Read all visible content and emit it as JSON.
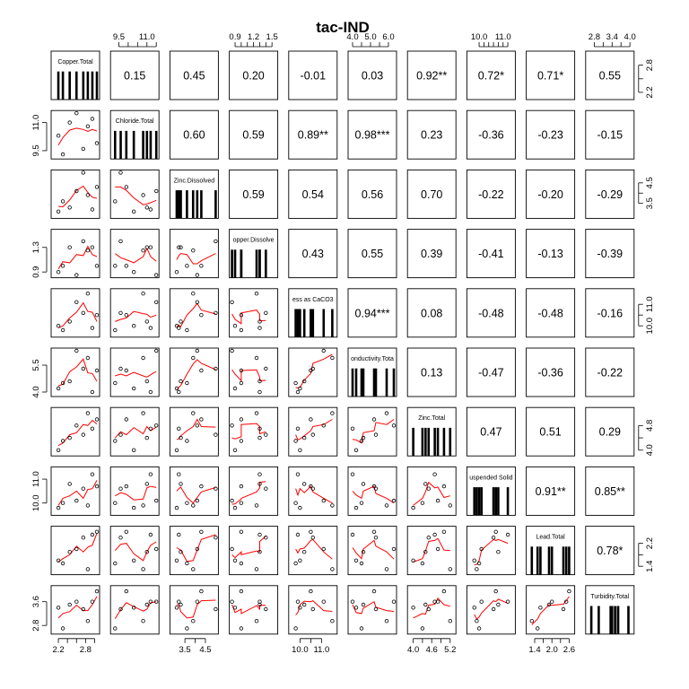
{
  "chart_data": {
    "type": "scatter",
    "title": "tac-IND",
    "variables": [
      "Copper.Total",
      "Chloride.Total",
      "Zinc.Dissolved",
      "opper.Dissolve",
      "ess as CaCO3",
      "onductivity.Tota",
      "Zinc.Total",
      "uspended Solid",
      "Lead.Total",
      "Turbidity.Total"
    ],
    "ranges": [
      [
        2.1,
        3.05
      ],
      [
        9.2,
        11.5
      ],
      [
        2.9,
        5.0
      ],
      [
        0.85,
        1.55
      ],
      [
        9.6,
        11.6
      ],
      [
        3.9,
        6.3
      ],
      [
        3.9,
        5.3
      ],
      [
        9.6,
        11.4
      ],
      [
        1.2,
        2.7
      ],
      [
        2.6,
        4.05
      ]
    ],
    "observations": [
      [
        2.2,
        10.3,
        3.1,
        0.9,
        10.0,
        4.2,
        4.0,
        9.8,
        1.6,
        3.4
      ],
      [
        2.3,
        9.3,
        3.6,
        1.0,
        9.8,
        4.5,
        4.3,
        10.0,
        1.5,
        2.7
      ],
      [
        2.45,
        11.0,
        3.3,
        1.3,
        10.2,
        4.6,
        4.4,
        10.8,
        1.9,
        3.5
      ],
      [
        2.6,
        11.5,
        4.1,
        0.85,
        11.1,
        6.3,
        4.8,
        10.1,
        2.0,
        3.6
      ],
      [
        2.75,
        9.6,
        5.0,
        1.4,
        10.6,
        5.3,
        4.5,
        10.6,
        2.4,
        3.35
      ],
      [
        2.85,
        10.8,
        3.9,
        1.25,
        11.5,
        5.9,
        5.2,
        9.9,
        1.3,
        2.95
      ],
      [
        2.95,
        11.2,
        3.2,
        1.3,
        9.9,
        4.0,
        4.7,
        11.2,
        2.5,
        3.6
      ],
      [
        3.05,
        9.9,
        4.3,
        1.0,
        10.5,
        5.2,
        5.0,
        10.7,
        2.6,
        3.95
      ]
    ],
    "correlations": [
      [
        "0.15",
        "0.45",
        "0.20",
        "-0.01",
        "0.03",
        "0.92**",
        "0.72*",
        "0.71*",
        "0.55"
      ],
      [
        "0.60",
        "0.59",
        "0.89**",
        "0.98***",
        "0.23",
        "-0.36",
        "-0.23",
        "-0.15"
      ],
      [
        "0.59",
        "0.54",
        "0.56",
        "0.70",
        "-0.22",
        "-0.20",
        "-0.29"
      ],
      [
        "0.43",
        "0.55",
        "0.39",
        "-0.41",
        "-0.13",
        "-0.39"
      ],
      [
        "0.94***",
        "0.08",
        "-0.48",
        "-0.48",
        "-0.16"
      ],
      [
        "0.13",
        "-0.47",
        "-0.36",
        "-0.22"
      ],
      [
        "0.47",
        "0.51",
        "0.29"
      ],
      [
        "0.91**",
        "0.85**"
      ],
      [
        "0.78*"
      ]
    ],
    "axis_ticks": {
      "top": [
        {
          "col": 1,
          "values": [
            9.5,
            11.0
          ],
          "minor": [
            9.5,
            10.0,
            10.5,
            11.0,
            11.5
          ]
        },
        {
          "col": 3,
          "values": [
            0.9,
            1.2,
            1.5
          ],
          "minor": [
            0.9,
            1.0,
            1.1,
            1.2,
            1.3,
            1.4,
            1.5
          ]
        },
        {
          "col": 5,
          "values": [
            4.0,
            5.0,
            6.0
          ],
          "minor": [
            4.0,
            4.5,
            5.0,
            5.5,
            6.0
          ]
        },
        {
          "col": 7,
          "values": [
            10.0,
            11.0
          ],
          "minor": [
            10.0,
            10.2,
            10.4,
            10.6,
            10.8,
            11.0,
            11.2
          ]
        },
        {
          "col": 9,
          "values": [
            2.8,
            3.4,
            4.0
          ],
          "minor": [
            2.8,
            3.1,
            3.4,
            3.7,
            4.0
          ]
        }
      ],
      "bottom": [
        {
          "col": 0,
          "values": [
            2.2,
            2.8
          ],
          "minor": [
            2.2,
            2.4,
            2.6,
            2.8,
            3.0
          ]
        },
        {
          "col": 2,
          "values": [
            3.5,
            4.5
          ],
          "minor": [
            3.5,
            4.0,
            4.5
          ]
        },
        {
          "col": 4,
          "values": [
            10.0,
            11.0
          ],
          "minor": [
            10.0,
            10.5,
            11.0
          ]
        },
        {
          "col": 6,
          "values": [
            4.0,
            4.6,
            5.2
          ],
          "minor": [
            4.0,
            4.3,
            4.6,
            4.9,
            5.2
          ]
        },
        {
          "col": 8,
          "values": [
            1.4,
            2.0,
            2.6
          ],
          "minor": [
            1.4,
            1.7,
            2.0,
            2.3,
            2.6
          ]
        }
      ],
      "left": [
        {
          "row": 1,
          "values": [
            9.5,
            11.0
          ]
        },
        {
          "row": 3,
          "values": [
            0.9,
            1.3
          ]
        },
        {
          "row": 5,
          "values": [
            4.0,
            5.5
          ]
        },
        {
          "row": 7,
          "values": [
            10.0,
            11.0
          ]
        },
        {
          "row": 9,
          "values": [
            2.8,
            3.6
          ]
        }
      ],
      "right": [
        {
          "row": 0,
          "values": [
            2.2,
            2.8
          ],
          "minor": [
            2.2,
            2.5,
            2.8
          ]
        },
        {
          "row": 2,
          "values": [
            3.5,
            4.5
          ],
          "minor": [
            3.5,
            4.0,
            4.5
          ]
        },
        {
          "row": 4,
          "values": [
            10.0,
            11.0
          ],
          "minor": [
            10.0,
            10.5,
            11.0
          ]
        },
        {
          "row": 6,
          "values": [
            4.0,
            4.8
          ],
          "minor": [
            4.0,
            4.4,
            4.8
          ]
        },
        {
          "row": 8,
          "values": [
            1.4,
            2.2
          ],
          "minor": [
            1.4,
            1.8,
            2.2
          ]
        }
      ]
    },
    "colors": {
      "smooth": "#ff0000",
      "point": "#000000",
      "frame": "#000000",
      "background": "#ffffff"
    }
  }
}
